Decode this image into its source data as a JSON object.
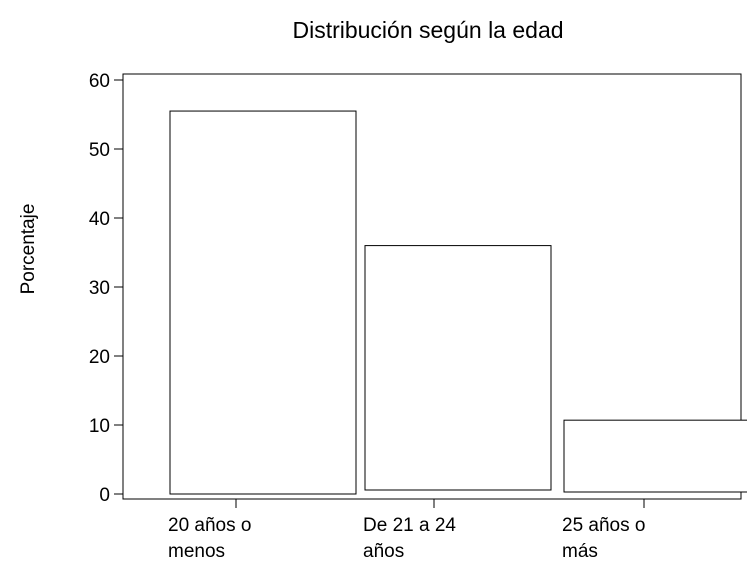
{
  "chart_data": {
    "type": "bar",
    "title": "Distribución según la edad",
    "xlabel": "",
    "ylabel": "Porcentaje",
    "ylim": [
      0,
      60
    ],
    "yticks": [
      0,
      10,
      20,
      30,
      40,
      50,
      60
    ],
    "grid": false,
    "legend": "none",
    "categories": [
      {
        "line1": "20 años o",
        "line2": "menos"
      },
      {
        "line1": "De 21 a 24",
        "line2": "años"
      },
      {
        "line1": "25 años o",
        "line2": "más"
      }
    ],
    "values": [
      55.5,
      36,
      10.7
    ],
    "bar_fill": "#ffffff",
    "bar_stroke": "#000000"
  }
}
